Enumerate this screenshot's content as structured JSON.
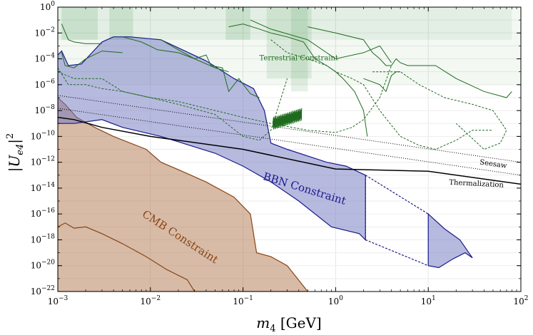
{
  "chart_data": {
    "type": "area",
    "title": "",
    "xlabel": "m_4 [GeV]",
    "ylabel": "|U_e4|^2",
    "x_scale": "log",
    "y_scale": "log",
    "xlim": [
      0.001,
      100
    ],
    "ylim": [
      1e-22,
      1
    ],
    "grid": true,
    "x_ticks": [
      {
        "value": 0.001,
        "base": "10",
        "exp": "−3"
      },
      {
        "value": 0.01,
        "base": "10",
        "exp": "−2"
      },
      {
        "value": 0.1,
        "base": "10",
        "exp": "−1"
      },
      {
        "value": 1,
        "base": "10",
        "exp": "0"
      },
      {
        "value": 10,
        "base": "10",
        "exp": "1"
      },
      {
        "value": 100,
        "base": "10",
        "exp": "2"
      }
    ],
    "y_ticks": [
      {
        "value": 1,
        "base": "10",
        "exp": "0"
      },
      {
        "value": 0.01,
        "base": "10",
        "exp": "−2"
      },
      {
        "value": 0.0001,
        "base": "10",
        "exp": "−4"
      },
      {
        "value": 1e-06,
        "base": "10",
        "exp": "−6"
      },
      {
        "value": 1e-08,
        "base": "10",
        "exp": "−8"
      },
      {
        "value": 1e-10,
        "base": "10",
        "exp": "−10"
      },
      {
        "value": 1e-12,
        "base": "10",
        "exp": "−12"
      },
      {
        "value": 1e-14,
        "base": "10",
        "exp": "−14"
      },
      {
        "value": 1e-16,
        "base": "10",
        "exp": "−16"
      },
      {
        "value": 1e-18,
        "base": "10",
        "exp": "−18"
      },
      {
        "value": 1e-20,
        "base": "10",
        "exp": "−20"
      },
      {
        "value": 1e-22,
        "base": "10",
        "exp": "−22"
      }
    ],
    "colors": {
      "terrestrial_fill": "#2e8b3a",
      "terrestrial_line": "#1e6b1e",
      "bbn_fill": "#7075c0",
      "bbn_line": "#1a1a8c",
      "cmb_fill": "#b07850",
      "cmb_line": "#8b4513",
      "thermalization": "#000000",
      "seesaw": "#000000"
    },
    "regions": [
      {
        "name": "Terrestrial Constraint",
        "label": "Terrestrial Constraint",
        "label_at": [
          0.4,
          8e-05
        ],
        "label_size": 10,
        "label_rotation": 0,
        "bands": [
          {
            "x": [
              0.0011,
              0.0027
            ],
            "y": [
              0.003,
              1
            ],
            "opacity": 0.14
          },
          {
            "x": [
              0.0036,
              0.0065
            ],
            "y": [
              0.003,
              1
            ],
            "opacity": 0.14
          },
          {
            "x": [
              0.065,
              0.12
            ],
            "y": [
              0.003,
              1
            ],
            "opacity": 0.14
          },
          {
            "x": [
              0.18,
              0.55
            ],
            "y": [
              3e-06,
              1
            ],
            "opacity": 0.12
          },
          {
            "x": [
              0.33,
              0.5
            ],
            "y": [
              3e-07,
              1
            ],
            "opacity": 0.12
          },
          {
            "x": [
              0.001,
              80
            ],
            "y": [
              0.003,
              1
            ],
            "opacity": 0.08
          },
          {
            "x": [
              0.001,
              100
            ],
            "y": [
              1e-06,
              1
            ],
            "opacity": 0.06
          }
        ]
      },
      {
        "name": "BBN Constraint",
        "label": "BBN Constraint",
        "label_at": [
          0.45,
          5e-15
        ],
        "label_size": 15,
        "label_rotation": 17,
        "polygons": [
          {
            "points": [
              [
                0.001,
                1e-09
              ],
              [
                0.001,
                0.0002
              ],
              [
                0.0011,
                0.0004
              ],
              [
                0.0013,
                3e-05
              ],
              [
                0.0018,
                4e-05
              ],
              [
                0.003,
                0.002
              ],
              [
                0.004,
                0.005
              ],
              [
                0.006,
                0.005
              ],
              [
                0.013,
                0.003
              ],
              [
                0.04,
                7e-05
              ],
              [
                0.08,
                3e-06
              ],
              [
                0.13,
                5e-07
              ],
              [
                0.17,
                1e-08
              ],
              [
                0.2,
                3e-11
              ],
              [
                0.3,
                1e-11
              ],
              [
                0.8,
                1e-12
              ],
              [
                1.3,
                5e-13
              ],
              [
                2.1,
                1e-13
              ],
              [
                2.1,
                1e-18
              ],
              [
                1.8,
                3e-18
              ],
              [
                0.9,
                1e-17
              ],
              [
                0.4,
                1e-15
              ],
              [
                0.2,
                3e-14
              ],
              [
                0.1,
                5e-13
              ],
              [
                0.05,
                5e-12
              ],
              [
                0.013,
                1e-10
              ],
              [
                0.005,
                5e-10
              ],
              [
                0.003,
                2e-09
              ],
              [
                0.0015,
                1e-09
              ]
            ]
          },
          {
            "points": [
              [
                10,
                1e-16
              ],
              [
                10,
                1e-20
              ],
              [
                13,
                7e-21
              ],
              [
                18,
                3e-20
              ],
              [
                25,
                1e-19
              ],
              [
                30,
                4e-20
              ],
              [
                22,
                1e-18
              ],
              [
                15,
                7e-18
              ]
            ]
          }
        ],
        "dashed_bridge": {
          "from": [
            [
              2.1,
              1e-13
            ],
            [
              2.1,
              1e-18
            ]
          ],
          "to": [
            [
              10,
              1e-16
            ],
            [
              10,
              1e-20
            ]
          ]
        }
      },
      {
        "name": "CMB Constraint",
        "label": "CMB Constraint",
        "label_at": [
          0.02,
          1e-18
        ],
        "label_size": 15,
        "label_rotation": 33,
        "polygons": [
          {
            "points": [
              [
                0.001,
                1e-22
              ],
              [
                0.001,
                1e-07
              ],
              [
                0.0012,
                3e-08
              ],
              [
                0.0016,
                3e-09
              ],
              [
                0.0025,
                5e-10
              ],
              [
                0.004,
                1e-10
              ],
              [
                0.009,
                1e-11
              ],
              [
                0.013,
                1e-12
              ],
              [
                0.022,
                2e-13
              ],
              [
                0.04,
                3e-14
              ],
              [
                0.08,
                2e-15
              ],
              [
                0.12,
                1e-16
              ],
              [
                0.14,
                1e-19
              ],
              [
                0.2,
                5e-20
              ],
              [
                0.3,
                1e-20
              ],
              [
                0.5,
                1e-22
              ]
            ]
          }
        ],
        "lower_edge": [
          [
            0.001,
            1e-17
          ],
          [
            0.0012,
            2e-17
          ],
          [
            0.0015,
            8e-18
          ],
          [
            0.002,
            1e-17
          ],
          [
            0.003,
            3e-18
          ],
          [
            0.005,
            5e-19
          ],
          [
            0.009,
            5e-20
          ],
          [
            0.015,
            5e-21
          ],
          [
            0.025,
            8e-22
          ],
          [
            0.03,
            1e-22
          ]
        ]
      }
    ],
    "series": [
      {
        "name": "Thermalization",
        "label": "Thermalization",
        "style": "solid",
        "x": [
          0.001,
          0.0015,
          0.003,
          0.01,
          0.1,
          1,
          10,
          100
        ],
        "y": [
          3e-09,
          2e-09,
          5e-10,
          1e-10,
          1e-11,
          3e-13,
          2e-13,
          2e-14
        ],
        "label_at": [
          33,
          1.5e-14
        ],
        "label_rotation": 3
      },
      {
        "name": "Seesaw upper",
        "label": "Seesaw",
        "style": "dotted",
        "x": [
          0.001,
          100
        ],
        "y": [
          1.5e-07,
          1e-12
        ],
        "label_at": [
          50,
          5e-13
        ],
        "label_rotation": 8
      },
      {
        "name": "Seesaw lower",
        "style": "dotted",
        "x": [
          0.001,
          100
        ],
        "y": [
          1.5e-08,
          1e-13
        ]
      },
      {
        "name": "Terrestrial bound A",
        "style": "solid",
        "x": [
          0.0011,
          0.0013,
          0.0015,
          0.002,
          0.003
        ],
        "y": [
          0.05,
          0.003,
          0.002,
          0.0015,
          0.0015
        ]
      },
      {
        "name": "Terrestrial bound B",
        "style": "solid",
        "x": [
          0.0011,
          0.0012,
          0.0015,
          0.002,
          0.003,
          0.005
        ],
        "y": [
          0.0003,
          3e-05,
          2e-05,
          0.0001,
          0.0004,
          0.0003
        ]
      },
      {
        "name": "Terrestrial bound C",
        "style": "solid",
        "x": [
          0.005,
          0.008,
          0.012,
          0.02,
          0.03,
          0.04,
          0.045,
          0.06,
          0.07,
          0.09,
          0.12,
          0.15
        ],
        "y": [
          0.005,
          0.002,
          0.0005,
          0.0003,
          0.0001,
          0.0002,
          3e-05,
          2e-05,
          3e-07,
          3e-06,
          2e-07,
          1e-07
        ]
      },
      {
        "name": "Terrestrial bound D",
        "style": "solid",
        "x": [
          0.013,
          0.02,
          0.03,
          0.05,
          0.07
        ],
        "y": [
          0.003,
          0.0005,
          0.0001,
          2e-05,
          1e-05
        ]
      },
      {
        "name": "Terrestrial bound E",
        "style": "solid",
        "x": [
          0.07,
          0.1,
          0.15,
          0.2,
          0.3,
          0.45,
          0.6,
          0.8,
          1,
          1.2,
          1.6,
          2,
          2.2
        ],
        "y": [
          0.03,
          0.05,
          0.02,
          0.01,
          0.005,
          0.002,
          0.0001,
          3e-05,
          1e-05,
          3e-06,
          3e-07,
          1e-08,
          1e-10
        ]
      },
      {
        "name": "Terrestrial bound F",
        "style": "solid",
        "x": [
          0.12,
          0.2,
          0.5,
          1,
          2,
          3,
          4
        ],
        "y": [
          0.1,
          0.02,
          0.003,
          0.0001,
          0.0003,
          0.001,
          5e-05
        ]
      },
      {
        "name": "Terrestrial bound G",
        "style": "solid",
        "x": [
          0.5,
          1,
          2,
          2.5,
          3,
          3.5,
          4,
          4.5,
          5,
          6,
          8,
          12,
          20,
          40,
          70,
          80
        ],
        "y": [
          0.03,
          0.01,
          0.003,
          0.0003,
          0.0001,
          3e-05,
          3e-05,
          0.0001,
          5e-05,
          3e-05,
          3e-05,
          3e-05,
          3e-06,
          3e-07,
          1e-07,
          3e-07
        ]
      },
      {
        "name": "Terrestrial bound H",
        "style": "solid",
        "x": [
          2,
          3,
          3.5,
          4,
          4.5,
          5
        ],
        "y": [
          3e-06,
          1e-06,
          3e-07,
          5e-06,
          1e-05,
          1e-05
        ]
      },
      {
        "name": "Terrestrial dashed A",
        "style": "dashed",
        "x": [
          0.001,
          0.0013,
          0.002,
          0.003,
          0.005,
          0.01,
          0.02,
          0.05,
          0.1,
          0.2,
          0.5,
          1,
          1.5,
          2,
          3,
          4
        ],
        "y": [
          2e-05,
          1e-06,
          1e-06,
          5e-07,
          3e-07,
          1e-07,
          5e-08,
          1e-08,
          3e-09,
          1e-09,
          3e-10,
          2e-10,
          5e-10,
          2e-09,
          1e-07,
          3e-05
        ]
      },
      {
        "name": "Terrestrial dashed B",
        "style": "dashed",
        "x": [
          0.001,
          0.0015,
          0.003,
          0.005,
          0.01,
          0.02,
          0.05,
          0.1,
          0.15,
          0.2,
          0.3
        ],
        "y": [
          1e-05,
          3e-06,
          3e-06,
          3e-07,
          1e-07,
          3e-08,
          5e-09,
          1e-10,
          5e-11,
          3e-10,
          3e-06
        ]
      },
      {
        "name": "Terrestrial dashed C",
        "style": "dashed",
        "x": [
          0.2,
          0.3,
          0.5,
          0.8,
          1,
          1.5,
          2,
          3,
          5,
          8,
          12,
          20,
          30,
          50
        ],
        "y": [
          0.003,
          0.0003,
          0.0001,
          3e-05,
          1e-05,
          3e-06,
          1e-06,
          1e-08,
          1e-10,
          2e-11,
          1e-11,
          5e-11,
          3e-10,
          3e-10
        ]
      },
      {
        "name": "Terrestrial dashed D",
        "style": "dashed",
        "x": [
          2.5,
          3.5,
          4,
          5,
          8,
          15,
          30,
          50,
          70,
          60,
          40,
          20
        ],
        "y": [
          1e-05,
          1e-05,
          1e-05,
          1e-05,
          1e-06,
          1e-07,
          3e-08,
          1e-08,
          3e-10,
          3e-11,
          1e-11,
          1e-09
        ]
      },
      {
        "name": "Terrestrial oscillation",
        "style": "oscillating",
        "x_range": [
          0.21,
          0.43
        ],
        "y_center": [
          1e-09,
          5e-09
        ],
        "y_amplitude_decades": 0.5
      }
    ]
  }
}
